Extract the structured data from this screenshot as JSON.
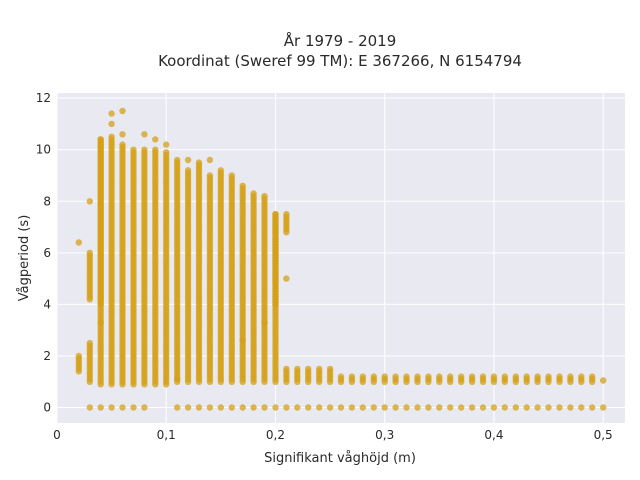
{
  "chart_data": {
    "type": "scatter",
    "title_lines": [
      "År 1979 - 2019",
      "Koordinat (Sweref 99 TM): E 367266, N 6154794"
    ],
    "xlabel": "Signifikant våghöjd (m)",
    "ylabel": "Vågperiod (s)",
    "xlim": [
      0,
      0.52
    ],
    "ylim": [
      -0.6,
      12.2
    ],
    "x_ticks": [
      0,
      0.1,
      0.2,
      0.3,
      0.4,
      0.5
    ],
    "x_tick_labels": [
      "0",
      "0,1",
      "0,2",
      "0,3",
      "0,4",
      "0,5"
    ],
    "y_ticks": [
      0,
      2,
      4,
      6,
      8,
      10,
      12
    ],
    "y_tick_labels": [
      "0",
      "2",
      "4",
      "6",
      "8",
      "10",
      "12"
    ],
    "grid": true,
    "marker_color": "#D4A017",
    "background_color": "#E9E9F1",
    "series": [
      {
        "columns": [
          {
            "x": 0.02,
            "ranges": [
              [
                1.4,
                2.0
              ]
            ],
            "singles": [
              6.4
            ]
          },
          {
            "x": 0.03,
            "ranges": [
              [
                1.0,
                2.5
              ],
              [
                4.2,
                6.0
              ]
            ],
            "singles": [
              8.0,
              0.0
            ]
          },
          {
            "x": 0.04,
            "ranges": [
              [
                0.9,
                10.4
              ],
              [
                4.0,
                10.4
              ]
            ],
            "singles": [
              3.3,
              0.0
            ]
          },
          {
            "x": 0.05,
            "ranges": [
              [
                0.9,
                10.5
              ]
            ],
            "singles": [
              11.4,
              11.0,
              0.0
            ]
          },
          {
            "x": 0.06,
            "ranges": [
              [
                0.9,
                10.2
              ]
            ],
            "singles": [
              11.5,
              10.6,
              0.0
            ]
          },
          {
            "x": 0.07,
            "ranges": [
              [
                0.9,
                10.0
              ]
            ],
            "singles": [
              0.0
            ]
          },
          {
            "x": 0.08,
            "ranges": [
              [
                0.9,
                10.0
              ]
            ],
            "singles": [
              10.6,
              0.0
            ]
          },
          {
            "x": 0.09,
            "ranges": [
              [
                0.9,
                10.0
              ]
            ],
            "singles": [
              10.4
            ]
          },
          {
            "x": 0.1,
            "ranges": [
              [
                0.9,
                9.9
              ]
            ],
            "singles": [
              10.2
            ]
          },
          {
            "x": 0.11,
            "ranges": [
              [
                1.0,
                9.6
              ]
            ],
            "singles": [
              1.1,
              0.0
            ]
          },
          {
            "x": 0.12,
            "ranges": [
              [
                1.0,
                9.2
              ]
            ],
            "singles": [
              9.6,
              0.0
            ]
          },
          {
            "x": 0.13,
            "ranges": [
              [
                1.0,
                9.5
              ]
            ],
            "singles": [
              0.0
            ]
          },
          {
            "x": 0.14,
            "ranges": [
              [
                1.0,
                9.0
              ]
            ],
            "singles": [
              9.6,
              0.0
            ]
          },
          {
            "x": 0.15,
            "ranges": [
              [
                1.0,
                9.2
              ]
            ],
            "singles": [
              0.0
            ]
          },
          {
            "x": 0.16,
            "ranges": [
              [
                1.0,
                9.0
              ]
            ],
            "singles": [
              0.0
            ]
          },
          {
            "x": 0.17,
            "ranges": [
              [
                1.0,
                8.6
              ]
            ],
            "singles": [
              2.6,
              0.0
            ]
          },
          {
            "x": 0.18,
            "ranges": [
              [
                1.0,
                8.3
              ]
            ],
            "singles": [
              0.0
            ]
          },
          {
            "x": 0.19,
            "ranges": [
              [
                1.0,
                8.2
              ]
            ],
            "singles": [
              3.3,
              0.0
            ]
          },
          {
            "x": 0.2,
            "ranges": [
              [
                1.0,
                7.5
              ],
              [
                4.0,
                7.5
              ]
            ],
            "singles": [
              0.0
            ]
          },
          {
            "x": 0.21,
            "ranges": [
              [
                6.8,
                7.5
              ],
              [
                1.0,
                1.5
              ]
            ],
            "singles": [
              5.0,
              0.0
            ]
          },
          {
            "x": 0.22,
            "ranges": [
              [
                1.0,
                1.5
              ]
            ],
            "singles": [
              0.0
            ]
          },
          {
            "x": 0.23,
            "ranges": [
              [
                1.0,
                1.5
              ]
            ],
            "singles": [
              0.0
            ]
          },
          {
            "x": 0.24,
            "ranges": [
              [
                1.0,
                1.5
              ]
            ],
            "singles": [
              0.0
            ]
          },
          {
            "x": 0.25,
            "ranges": [
              [
                1.0,
                1.5
              ]
            ],
            "singles": [
              0.0
            ]
          },
          {
            "x": 0.26,
            "ranges": [
              [
                1.0,
                1.2
              ]
            ],
            "singles": [
              0.0
            ]
          },
          {
            "x": 0.27,
            "ranges": [
              [
                1.0,
                1.2
              ]
            ],
            "singles": [
              0.0
            ]
          },
          {
            "x": 0.28,
            "ranges": [
              [
                1.0,
                1.2
              ]
            ],
            "singles": [
              0.0
            ]
          },
          {
            "x": 0.29,
            "ranges": [
              [
                1.0,
                1.2
              ]
            ],
            "singles": [
              0.0
            ]
          },
          {
            "x": 0.3,
            "ranges": [
              [
                1.0,
                1.2
              ]
            ],
            "singles": [
              0.0
            ]
          },
          {
            "x": 0.31,
            "ranges": [
              [
                1.0,
                1.2
              ]
            ],
            "singles": [
              0.0
            ]
          },
          {
            "x": 0.32,
            "ranges": [
              [
                1.0,
                1.2
              ]
            ],
            "singles": [
              0.0
            ]
          },
          {
            "x": 0.33,
            "ranges": [
              [
                1.0,
                1.2
              ]
            ],
            "singles": [
              0.0
            ]
          },
          {
            "x": 0.34,
            "ranges": [
              [
                1.0,
                1.2
              ]
            ],
            "singles": [
              0.0
            ]
          },
          {
            "x": 0.35,
            "ranges": [
              [
                1.0,
                1.2
              ]
            ],
            "singles": [
              0.0
            ]
          },
          {
            "x": 0.36,
            "ranges": [
              [
                1.0,
                1.2
              ]
            ],
            "singles": [
              0.0
            ]
          },
          {
            "x": 0.37,
            "ranges": [
              [
                1.0,
                1.2
              ]
            ],
            "singles": [
              0.0
            ]
          },
          {
            "x": 0.38,
            "ranges": [
              [
                1.0,
                1.2
              ]
            ],
            "singles": [
              0.0
            ]
          },
          {
            "x": 0.39,
            "ranges": [
              [
                1.0,
                1.2
              ]
            ],
            "singles": [
              0.0
            ]
          },
          {
            "x": 0.4,
            "ranges": [
              [
                1.0,
                1.2
              ]
            ],
            "singles": [
              0.0
            ]
          },
          {
            "x": 0.41,
            "ranges": [
              [
                1.0,
                1.2
              ]
            ],
            "singles": [
              0.0
            ]
          },
          {
            "x": 0.42,
            "ranges": [
              [
                1.0,
                1.2
              ]
            ],
            "singles": [
              0.0
            ]
          },
          {
            "x": 0.43,
            "ranges": [
              [
                1.0,
                1.2
              ]
            ],
            "singles": [
              0.0
            ]
          },
          {
            "x": 0.44,
            "ranges": [
              [
                1.0,
                1.2
              ]
            ],
            "singles": [
              0.0
            ]
          },
          {
            "x": 0.45,
            "ranges": [
              [
                1.0,
                1.2
              ]
            ],
            "singles": [
              0.0
            ]
          },
          {
            "x": 0.46,
            "ranges": [
              [
                1.0,
                1.2
              ]
            ],
            "singles": [
              0.0
            ]
          },
          {
            "x": 0.47,
            "ranges": [
              [
                1.0,
                1.2
              ]
            ],
            "singles": [
              0.0
            ]
          },
          {
            "x": 0.48,
            "ranges": [
              [
                1.0,
                1.2
              ]
            ],
            "singles": [
              0.0
            ]
          },
          {
            "x": 0.49,
            "ranges": [
              [
                1.0,
                1.2
              ]
            ],
            "singles": [
              0.0
            ]
          },
          {
            "x": 0.5,
            "ranges": [],
            "singles": [
              1.05,
              0.0
            ]
          }
        ]
      }
    ]
  }
}
